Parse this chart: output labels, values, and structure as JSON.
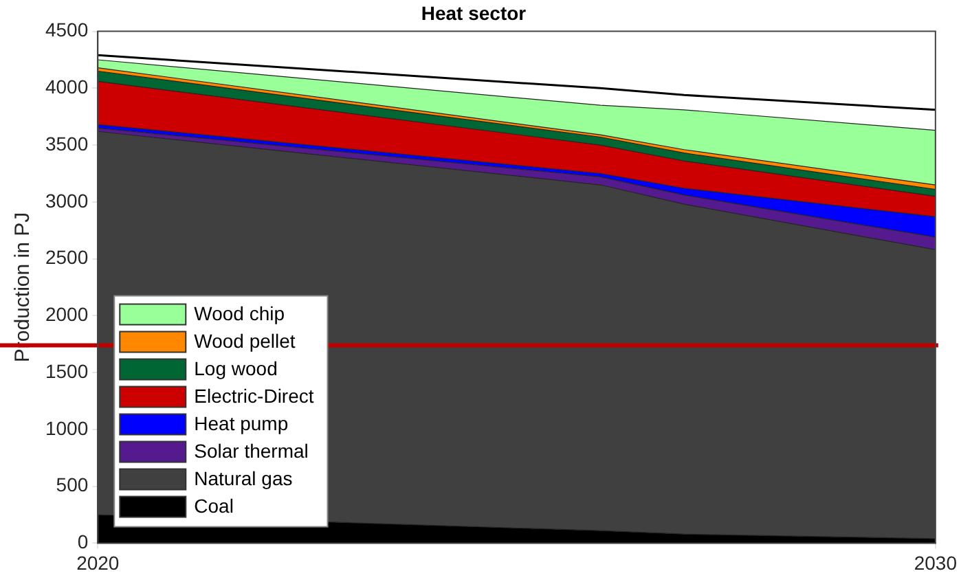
{
  "chart_data": {
    "type": "area",
    "stacked": true,
    "title": "Heat sector",
    "ylabel": "Production in PJ",
    "x": [
      2020,
      2026,
      2027,
      2030
    ],
    "xlim": [
      2020,
      2030
    ],
    "xticks": [
      2020,
      2030
    ],
    "ylim": [
      0,
      4500
    ],
    "yticks": [
      0,
      500,
      1000,
      1500,
      2000,
      2500,
      3000,
      3500,
      4000,
      4500
    ],
    "grid": false,
    "legend": "bottom left",
    "series": [
      {
        "name": "Coal",
        "color": "#000000",
        "values": [
          250,
          110,
          80,
          40
        ]
      },
      {
        "name": "Natural gas",
        "color": "#404040",
        "values": [
          3370,
          3040,
          2900,
          2540
        ]
      },
      {
        "name": "Solar thermal",
        "color": "#561a8f",
        "values": [
          30,
          70,
          80,
          110
        ]
      },
      {
        "name": "Heat pump",
        "color": "#0000ff",
        "values": [
          30,
          30,
          60,
          180
        ]
      },
      {
        "name": "Electric-Direct",
        "color": "#cc0000",
        "values": [
          380,
          250,
          240,
          180
        ]
      },
      {
        "name": "Log wood",
        "color": "#006633",
        "values": [
          90,
          70,
          70,
          60
        ]
      },
      {
        "name": "Wood pellet",
        "color": "#ff8800",
        "values": [
          30,
          20,
          30,
          40
        ]
      },
      {
        "name": "Wood chip",
        "color": "#99ff99",
        "values": [
          70,
          260,
          350,
          480
        ]
      },
      {
        "type": "line",
        "color": "#000000",
        "values": [
          4290,
          4000,
          3940,
          3810
        ]
      }
    ],
    "ref_lines": [
      {
        "axis": "y",
        "value": 1740,
        "color": "#c00000"
      }
    ]
  }
}
